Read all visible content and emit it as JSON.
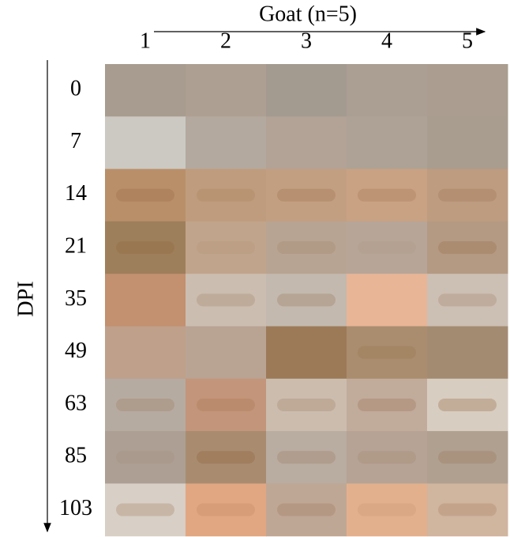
{
  "header": {
    "title": "Goat (n=5)",
    "columns": [
      "1",
      "2",
      "3",
      "4",
      "5"
    ]
  },
  "side": {
    "label": "DPI",
    "rows": [
      "0",
      "7",
      "14",
      "21",
      "35",
      "49",
      "63",
      "85",
      "103"
    ]
  }
}
